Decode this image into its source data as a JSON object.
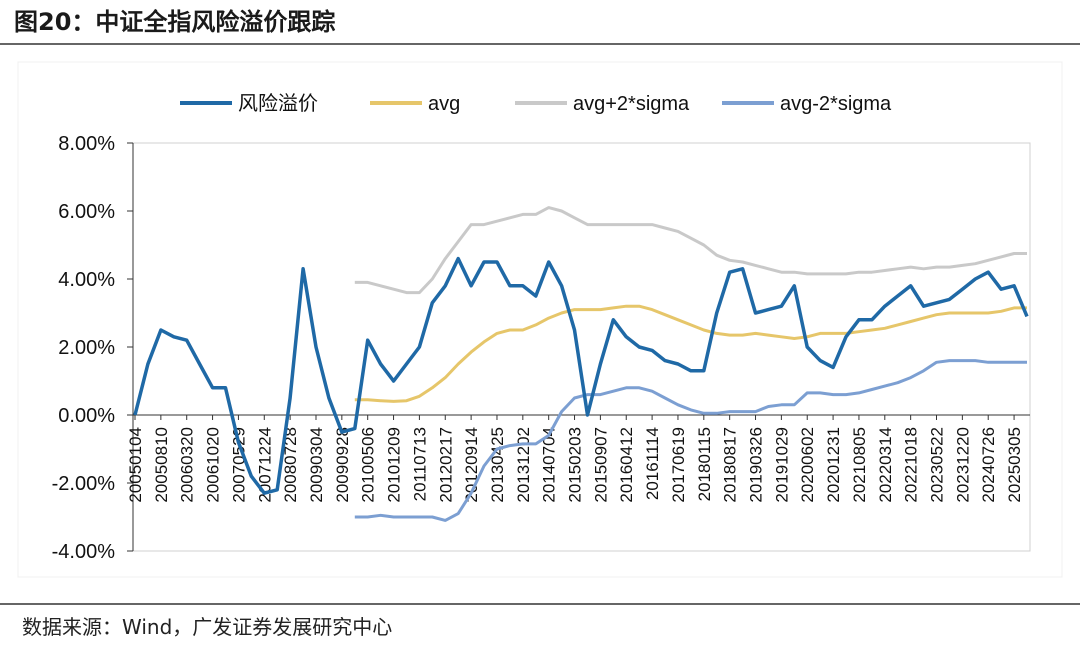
{
  "title": "图20：中证全指风险溢价跟踪",
  "source": "数据来源：Wind，广发证券发展研究中心",
  "chart_data": {
    "type": "line",
    "categories": [
      "20050104",
      null,
      "20050810",
      null,
      "20060320",
      null,
      "20061020",
      null,
      "20070529",
      null,
      "20071224",
      null,
      "20080728",
      null,
      "20090304",
      null,
      "20090928",
      null,
      "20100506",
      null,
      "20101209",
      null,
      "20110713",
      null,
      "20120217",
      null,
      "20120914",
      null,
      "20130425",
      null,
      "20131202",
      null,
      "20140704",
      null,
      "20150203",
      null,
      "20150907",
      null,
      "20160412",
      null,
      "20161114",
      null,
      "20170619",
      null,
      "20180115",
      null,
      "20180817",
      null,
      "20190326",
      null,
      "20191029",
      null,
      "20200602",
      null,
      "20201231",
      null,
      "20210805",
      null,
      "20220314",
      null,
      "20221018",
      null,
      "20230522",
      null,
      "20231220",
      null,
      "20240726",
      null,
      "20250305",
      null
    ],
    "series": [
      {
        "name": "风险溢价",
        "color": "#1f69a6",
        "width": 3.5,
        "values": [
          0.0,
          1.5,
          2.5,
          2.3,
          2.2,
          1.5,
          0.8,
          0.8,
          -0.8,
          -1.8,
          -2.3,
          -2.2,
          0.5,
          4.3,
          2.0,
          0.5,
          -0.5,
          -0.4,
          2.2,
          1.5,
          1.0,
          1.5,
          2.0,
          3.3,
          3.8,
          4.6,
          3.8,
          4.5,
          4.5,
          3.8,
          3.8,
          3.5,
          4.5,
          3.8,
          2.5,
          0.0,
          1.5,
          2.8,
          2.3,
          2.0,
          1.9,
          1.6,
          1.5,
          1.3,
          1.3,
          3.0,
          4.2,
          4.3,
          3.0,
          3.1,
          3.2,
          3.8,
          2.0,
          1.6,
          1.4,
          2.3,
          2.8,
          2.8,
          3.2,
          3.5,
          3.8,
          3.2,
          3.3,
          3.4,
          3.7,
          4.0,
          4.2,
          3.7,
          3.8,
          2.9
        ]
      },
      {
        "name": "avg",
        "color": "#e6c66a",
        "width": 3,
        "values": [
          null,
          null,
          null,
          null,
          null,
          null,
          null,
          null,
          null,
          null,
          null,
          null,
          null,
          null,
          null,
          null,
          null,
          0.45,
          0.45,
          0.42,
          0.4,
          0.42,
          0.55,
          0.8,
          1.1,
          1.5,
          1.85,
          2.15,
          2.4,
          2.5,
          2.5,
          2.65,
          2.85,
          3.0,
          3.1,
          3.1,
          3.1,
          3.15,
          3.2,
          3.2,
          3.1,
          2.95,
          2.8,
          2.65,
          2.5,
          2.4,
          2.35,
          2.35,
          2.4,
          2.35,
          2.3,
          2.25,
          2.3,
          2.4,
          2.4,
          2.4,
          2.45,
          2.5,
          2.55,
          2.65,
          2.75,
          2.85,
          2.95,
          3.0,
          3.0,
          3.0,
          3.0,
          3.05,
          3.15,
          3.15
        ]
      },
      {
        "name": "avg+2*sigma",
        "color": "#c9c9c9",
        "width": 3,
        "values": [
          null,
          null,
          null,
          null,
          null,
          null,
          null,
          null,
          null,
          null,
          null,
          null,
          null,
          null,
          null,
          null,
          null,
          3.9,
          3.9,
          3.8,
          3.7,
          3.6,
          3.6,
          4.0,
          4.6,
          5.1,
          5.6,
          5.6,
          5.7,
          5.8,
          5.9,
          5.9,
          6.1,
          6.0,
          5.8,
          5.6,
          5.6,
          5.6,
          5.6,
          5.6,
          5.6,
          5.5,
          5.4,
          5.2,
          5.0,
          4.7,
          4.55,
          4.5,
          4.4,
          4.3,
          4.2,
          4.2,
          4.15,
          4.15,
          4.15,
          4.15,
          4.2,
          4.2,
          4.25,
          4.3,
          4.35,
          4.3,
          4.35,
          4.35,
          4.4,
          4.45,
          4.55,
          4.65,
          4.75,
          4.75
        ]
      },
      {
        "name": "avg-2*sigma",
        "color": "#7c9fd2",
        "width": 3,
        "values": [
          null,
          null,
          null,
          null,
          null,
          null,
          null,
          null,
          null,
          null,
          null,
          null,
          null,
          null,
          null,
          null,
          null,
          -3.0,
          -3.0,
          -2.95,
          -3.0,
          -3.0,
          -3.0,
          -3.0,
          -3.1,
          -2.9,
          -2.3,
          -1.5,
          -1.0,
          -0.9,
          -0.85,
          -0.85,
          -0.6,
          0.1,
          0.5,
          0.6,
          0.6,
          0.7,
          0.8,
          0.8,
          0.7,
          0.5,
          0.3,
          0.15,
          0.05,
          0.05,
          0.1,
          0.1,
          0.1,
          0.25,
          0.3,
          0.3,
          0.65,
          0.65,
          0.6,
          0.6,
          0.65,
          0.75,
          0.85,
          0.95,
          1.1,
          1.3,
          1.55,
          1.6,
          1.6,
          1.6,
          1.55,
          1.55,
          1.55,
          1.55
        ]
      }
    ],
    "ylim": [
      -4,
      8
    ],
    "yticks": [
      {
        "value": -4,
        "label": "-4.00%"
      },
      {
        "value": -2,
        "label": "-2.00%"
      },
      {
        "value": 0,
        "label": "0.00%"
      },
      {
        "value": 2,
        "label": "2.00%"
      },
      {
        "value": 4,
        "label": "4.00%"
      },
      {
        "value": 6,
        "label": "6.00%"
      },
      {
        "value": 8,
        "label": "8.00%"
      }
    ],
    "legend": "top"
  }
}
